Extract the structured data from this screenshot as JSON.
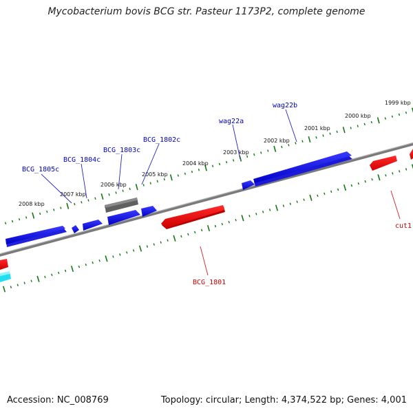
{
  "title": "Mycobacterium bovis BCG str. Pasteur 1173P2, complete genome",
  "accession": "Accession: NC_008769",
  "topology": "Topology: circular; Length: 4,374,522 bp; Genes: 4,001",
  "colors": {
    "forward_gene": "#1010f0",
    "reverse_gene": "#e81010",
    "other_gene": "#606060",
    "cyan_gene": "#10e8f0",
    "backbone": "#888888",
    "tick": "#117711",
    "label_forward": "#0000cc",
    "label_reverse": "#cc0000"
  },
  "scale_labels": [
    {
      "text": "2008 kbp"
    },
    {
      "text": "2007 kbp"
    },
    {
      "text": "2006 kbp"
    },
    {
      "text": "2005 kbp"
    },
    {
      "text": "2004 kbp"
    },
    {
      "text": "2003 kbp"
    },
    {
      "text": "2002 kbp"
    },
    {
      "text": "2001 kbp"
    },
    {
      "text": "2000 kbp"
    },
    {
      "text": "1999 kbp"
    }
  ],
  "gene_labels": {
    "bcg_1805c": "BCG_1805c",
    "bcg_1804c": "BCG_1804c",
    "bcg_1803c": "BCG_1803c",
    "bcg_1802c": "BCG_1802c",
    "wag22a": "wag22a",
    "wag22b": "wag22b",
    "bcg_1801": "BCG_1801",
    "cut1": "cut1"
  }
}
